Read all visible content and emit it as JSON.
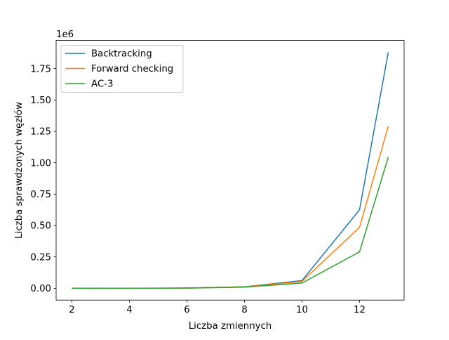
{
  "chart_data": {
    "type": "line",
    "title": "",
    "xlabel": "Liczba zmiennych",
    "ylabel": "Liczba sprawdzonych węzłów",
    "offset_label": "1e6",
    "xlim": [
      1.45,
      13.55
    ],
    "ylim": [
      -0.094,
      1.974
    ],
    "xticks": [
      2,
      4,
      6,
      8,
      10,
      12
    ],
    "xtick_labels": [
      "2",
      "4",
      "6",
      "8",
      "10",
      "12"
    ],
    "yticks": [
      0,
      0.25,
      0.5,
      0.75,
      1.0,
      1.25,
      1.5,
      1.75
    ],
    "ytick_labels": [
      "0.00",
      "0.25",
      "0.50",
      "0.75",
      "1.00",
      "1.25",
      "1.50",
      "1.75"
    ],
    "grid": false,
    "legend_position": "top-left",
    "x": [
      2,
      4,
      6,
      8,
      10,
      12,
      13
    ],
    "series": [
      {
        "name": "Backtracking",
        "color": "#1f77b4",
        "values": [
          0.0,
          0.0005,
          0.002,
          0.012,
          0.062,
          0.625,
          1.88
        ]
      },
      {
        "name": "Forward checking",
        "color": "#ff7f0e",
        "values": [
          0.0,
          0.0004,
          0.0018,
          0.011,
          0.055,
          0.485,
          1.29
        ]
      },
      {
        "name": "AC-3",
        "color": "#2ca02c",
        "values": [
          0.0,
          0.0003,
          0.0015,
          0.009,
          0.042,
          0.29,
          1.045
        ]
      }
    ]
  }
}
